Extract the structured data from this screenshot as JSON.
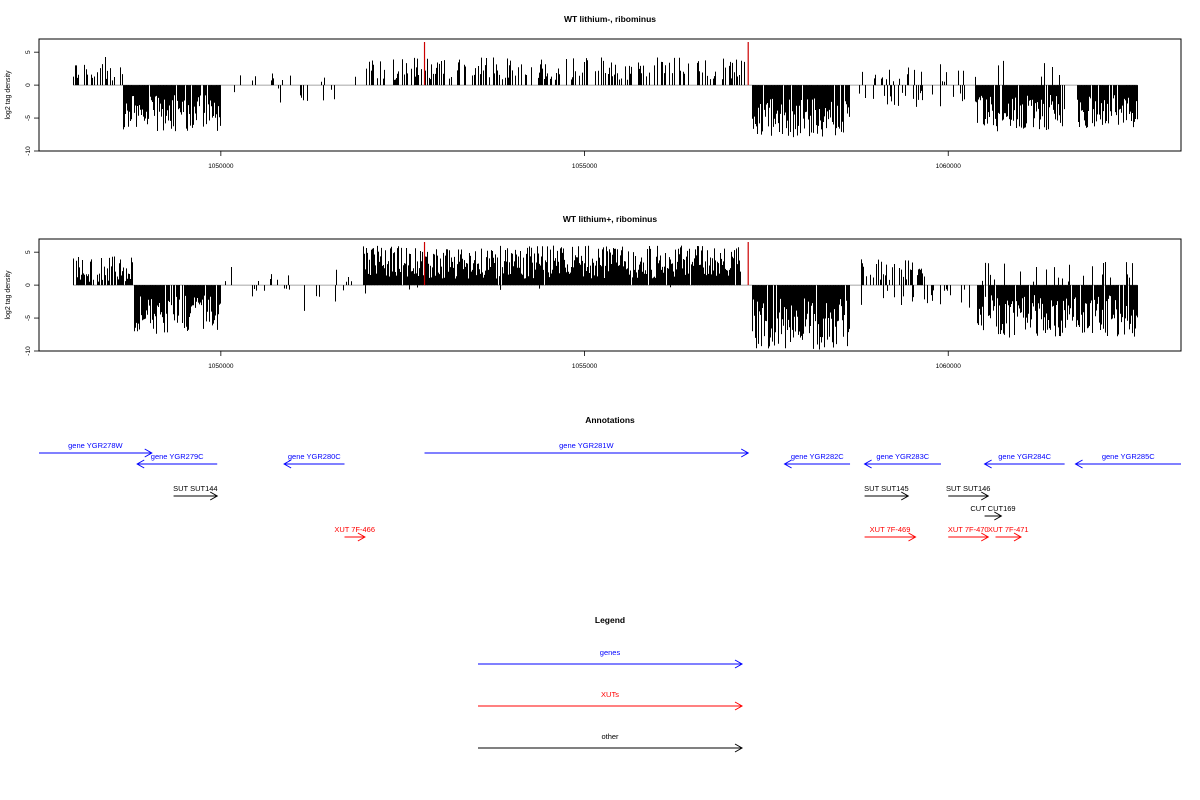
{
  "colors": {
    "bars": "#000000",
    "marker": "#cc0000",
    "genes": "#0000ff",
    "xuts": "#ff0000",
    "other": "#000000",
    "frame": "#000000",
    "zero_line": "#888888"
  },
  "chart_data": [
    {
      "type": "bar",
      "title": "WT lithium-, ribominus",
      "ylabel": "log2 tag density",
      "xlim": [
        1047500,
        1063200
      ],
      "ylim": [
        -10,
        7
      ],
      "xticks": [
        1050000,
        1055000,
        1060000
      ],
      "xtick_labels": [
        "1050000",
        "1055000",
        "1060000"
      ],
      "yticks": [
        5,
        0,
        -5,
        -10
      ],
      "ytick_labels": [
        "5",
        "0",
        "-5",
        "-10"
      ],
      "grid": false,
      "marker_positions": [
        1052800,
        1057250
      ],
      "bar_width": 10,
      "segments": [
        {
          "start": 1047970,
          "end": 1048650,
          "sign": 1,
          "density": 0.3,
          "min": 0.6,
          "max": 4.3
        },
        {
          "start": 1048650,
          "end": 1050000,
          "sign": -1,
          "density": 0.85,
          "min": 1.5,
          "max": 7.0
        },
        {
          "start": 1050000,
          "end": 1052000,
          "sign": 1,
          "density": 0.05,
          "min": 0.5,
          "max": 2.4
        },
        {
          "start": 1050100,
          "end": 1052000,
          "sign": -1,
          "density": 0.1,
          "min": 0.5,
          "max": 3.2
        },
        {
          "start": 1052000,
          "end": 1057200,
          "sign": 1,
          "density": 0.35,
          "min": 0.8,
          "max": 4.2
        },
        {
          "start": 1057300,
          "end": 1058650,
          "sign": -1,
          "density": 0.9,
          "min": 2.0,
          "max": 8.0
        },
        {
          "start": 1058700,
          "end": 1060400,
          "sign": 1,
          "density": 0.12,
          "min": 0.5,
          "max": 3.2
        },
        {
          "start": 1058700,
          "end": 1060400,
          "sign": -1,
          "density": 0.15,
          "min": 0.8,
          "max": 3.5
        },
        {
          "start": 1060400,
          "end": 1061600,
          "sign": -1,
          "density": 0.85,
          "min": 1.5,
          "max": 7.0
        },
        {
          "start": 1060400,
          "end": 1061600,
          "sign": 1,
          "density": 0.08,
          "min": 0.5,
          "max": 3.8
        },
        {
          "start": 1061750,
          "end": 1062600,
          "sign": -1,
          "density": 0.85,
          "min": 1.5,
          "max": 6.5
        }
      ]
    },
    {
      "type": "bar",
      "title": "WT lithium+, ribominus",
      "ylabel": "log2 tag density",
      "xlim": [
        1047500,
        1063200
      ],
      "ylim": [
        -10,
        7
      ],
      "xticks": [
        1050000,
        1055000,
        1060000
      ],
      "xtick_labels": [
        "1050000",
        "1055000",
        "1060000"
      ],
      "yticks": [
        5,
        0,
        -5,
        -10
      ],
      "ytick_labels": [
        "5",
        "0",
        "-5",
        "-10"
      ],
      "grid": false,
      "marker_positions": [
        1052800,
        1057250
      ],
      "bar_width": 10,
      "segments": [
        {
          "start": 1047970,
          "end": 1048800,
          "sign": 1,
          "density": 0.6,
          "min": 0.5,
          "max": 4.5
        },
        {
          "start": 1048800,
          "end": 1050000,
          "sign": -1,
          "density": 0.9,
          "min": 1.5,
          "max": 7.5
        },
        {
          "start": 1050000,
          "end": 1052000,
          "sign": 1,
          "density": 0.06,
          "min": 0.5,
          "max": 3.2
        },
        {
          "start": 1050100,
          "end": 1052000,
          "sign": -1,
          "density": 0.08,
          "min": 0.5,
          "max": 4.3
        },
        {
          "start": 1051950,
          "end": 1057150,
          "sign": 1,
          "density": 0.95,
          "min": 1.0,
          "max": 6.0
        },
        {
          "start": 1052000,
          "end": 1056500,
          "sign": -1,
          "density": 0.03,
          "min": 0.3,
          "max": 1.5
        },
        {
          "start": 1057300,
          "end": 1058650,
          "sign": -1,
          "density": 0.95,
          "min": 2.0,
          "max": 9.8
        },
        {
          "start": 1058800,
          "end": 1059700,
          "sign": 1,
          "density": 0.5,
          "min": 0.8,
          "max": 4.0
        },
        {
          "start": 1058800,
          "end": 1060400,
          "sign": -1,
          "density": 0.15,
          "min": 0.5,
          "max": 3.5
        },
        {
          "start": 1060400,
          "end": 1062600,
          "sign": -1,
          "density": 0.9,
          "min": 1.5,
          "max": 8.0
        },
        {
          "start": 1060400,
          "end": 1062600,
          "sign": 1,
          "density": 0.12,
          "min": 0.5,
          "max": 3.8
        }
      ]
    }
  ],
  "annotations": {
    "title": "Annotations",
    "xlim": [
      1047500,
      1063200
    ],
    "items": [
      {
        "label": "gene YGR278W",
        "kind": "genes",
        "dir": 1,
        "start": 1047500,
        "end": 1049050,
        "row": 0
      },
      {
        "label": "gene YGR279C",
        "kind": "genes",
        "dir": -1,
        "start": 1048850,
        "end": 1049950,
        "row": 1
      },
      {
        "label": "gene YGR280C",
        "kind": "genes",
        "dir": -1,
        "start": 1050870,
        "end": 1051700,
        "row": 1
      },
      {
        "label": "gene YGR281W",
        "kind": "genes",
        "dir": 1,
        "start": 1052800,
        "end": 1057250,
        "row": 0
      },
      {
        "label": "gene YGR282C",
        "kind": "genes",
        "dir": -1,
        "start": 1057750,
        "end": 1058650,
        "row": 1
      },
      {
        "label": "gene YGR283C",
        "kind": "genes",
        "dir": -1,
        "start": 1058850,
        "end": 1059900,
        "row": 1
      },
      {
        "label": "gene YGR284C",
        "kind": "genes",
        "dir": -1,
        "start": 1060500,
        "end": 1061600,
        "row": 1
      },
      {
        "label": "gene YGR285C",
        "kind": "genes",
        "dir": -1,
        "start": 1061750,
        "end": 1063200,
        "row": 1
      },
      {
        "label": "SUT SUT144",
        "kind": "other",
        "dir": 1,
        "start": 1049350,
        "end": 1049950,
        "row": 2
      },
      {
        "label": "SUT SUT145",
        "kind": "other",
        "dir": 1,
        "start": 1058850,
        "end": 1059450,
        "row": 2
      },
      {
        "label": "SUT SUT146",
        "kind": "other",
        "dir": 1,
        "start": 1060000,
        "end": 1060550,
        "row": 2
      },
      {
        "label": "CUT CUT169",
        "kind": "other",
        "dir": 1,
        "start": 1060500,
        "end": 1060730,
        "row": 3
      },
      {
        "label": "XUT 7F-466",
        "kind": "xuts",
        "dir": 1,
        "start": 1051700,
        "end": 1051980,
        "row": 4
      },
      {
        "label": "XUT 7F-469",
        "kind": "xuts",
        "dir": 1,
        "start": 1058850,
        "end": 1059550,
        "row": 4
      },
      {
        "label": "XUT 7F-470",
        "kind": "xuts",
        "dir": 1,
        "start": 1060000,
        "end": 1060550,
        "row": 4
      },
      {
        "label": "XUT 7F-471",
        "kind": "xuts",
        "dir": 1,
        "start": 1060650,
        "end": 1061000,
        "row": 4
      }
    ]
  },
  "legend": {
    "title": "Legend",
    "items": [
      {
        "label": "genes",
        "kind": "genes"
      },
      {
        "label": "XUTs",
        "kind": "xuts"
      },
      {
        "label": "other",
        "kind": "other"
      }
    ]
  }
}
